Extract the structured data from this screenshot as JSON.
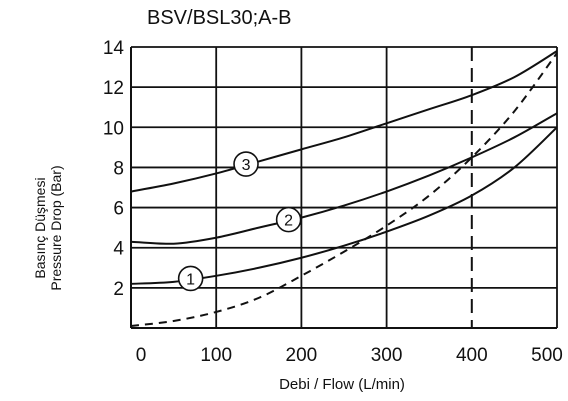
{
  "chart_data": {
    "type": "line",
    "title": "BSV/BSL30;A-B",
    "xlabel": "Debi / Flow (L/min)",
    "ylabel_lines": [
      "Basınç Düşmesi",
      "Pressure Drop (Bar)"
    ],
    "xlim": [
      0,
      500
    ],
    "ylim": [
      0,
      14
    ],
    "xticks": [
      "0",
      "100",
      "200",
      "300",
      "400",
      "500"
    ],
    "yticks": [
      "2",
      "4",
      "6",
      "8",
      "10",
      "12",
      "14"
    ],
    "grid": true,
    "reference_line_x": 400,
    "series": [
      {
        "name": "1",
        "style": "solid",
        "x": [
          0,
          50,
          100,
          150,
          200,
          250,
          300,
          350,
          400,
          450,
          500
        ],
        "y": [
          2.2,
          2.3,
          2.6,
          3.0,
          3.5,
          4.1,
          4.8,
          5.6,
          6.6,
          8.0,
          10.0
        ]
      },
      {
        "name": "2",
        "style": "solid",
        "x": [
          0,
          50,
          100,
          150,
          200,
          250,
          300,
          350,
          400,
          450,
          500
        ],
        "y": [
          4.3,
          4.2,
          4.5,
          5.0,
          5.5,
          6.1,
          6.8,
          7.6,
          8.5,
          9.5,
          10.7
        ]
      },
      {
        "name": "3",
        "style": "solid",
        "x": [
          0,
          50,
          100,
          150,
          200,
          250,
          300,
          350,
          400,
          450,
          500
        ],
        "y": [
          6.8,
          7.2,
          7.7,
          8.3,
          8.9,
          9.5,
          10.2,
          10.9,
          11.6,
          12.5,
          13.8
        ]
      },
      {
        "name": "",
        "style": "dashed",
        "x": [
          0,
          50,
          100,
          150,
          200,
          250,
          300,
          350,
          400,
          450,
          500
        ],
        "y": [
          0.1,
          0.35,
          0.8,
          1.5,
          2.6,
          3.8,
          5.1,
          6.6,
          8.5,
          10.8,
          13.7
        ]
      }
    ],
    "markers": [
      {
        "label": "1",
        "series": "1",
        "x": 70
      },
      {
        "label": "2",
        "series": "2",
        "x": 185
      },
      {
        "label": "3",
        "series": "3",
        "x": 135
      }
    ]
  }
}
